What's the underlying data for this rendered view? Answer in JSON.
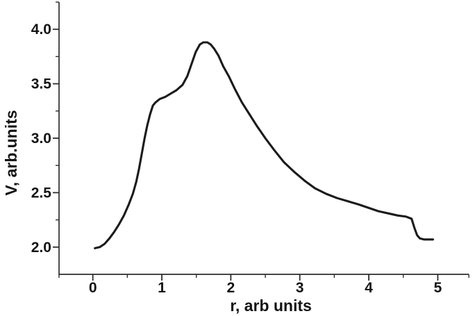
{
  "figure": {
    "background_color": "#ffffff",
    "axis_color": "#2d2d2d",
    "curve_color": "#1b1b1b",
    "text_color": "#141414"
  },
  "chart_data": {
    "type": "line",
    "title": "",
    "xlabel": "r, arb units",
    "ylabel": "V, arb.units",
    "xlim": [
      -0.49,
      5.45
    ],
    "ylim": [
      1.75,
      4.25
    ],
    "grid": false,
    "legend": null,
    "x_ticks": [
      0,
      1,
      2,
      3,
      4,
      5
    ],
    "x_tick_labels": [
      "0",
      "1",
      "2",
      "3",
      "4",
      "5"
    ],
    "x_minor_ticks": [
      -0.49,
      0.5,
      1.5,
      2.5,
      3.5,
      4.5,
      5.45
    ],
    "y_ticks": [
      2.0,
      2.5,
      3.0,
      3.5,
      4.0
    ],
    "y_tick_labels": [
      "2.0",
      "2.5",
      "3.0",
      "3.5",
      "4.0"
    ],
    "y_minor_ticks": [
      2.25,
      2.75,
      3.25,
      3.75,
      4.25
    ],
    "series": [
      {
        "name": "",
        "x": [
          0.03,
          0.1,
          0.17,
          0.24,
          0.31,
          0.38,
          0.45,
          0.52,
          0.58,
          0.63,
          0.67,
          0.71,
          0.75,
          0.79,
          0.83,
          0.87,
          0.91,
          0.97,
          1.05,
          1.13,
          1.21,
          1.3,
          1.37,
          1.43,
          1.49,
          1.55,
          1.6,
          1.66,
          1.71,
          1.76,
          1.82,
          1.89,
          1.97,
          2.06,
          2.16,
          2.27,
          2.38,
          2.5,
          2.63,
          2.77,
          2.92,
          3.07,
          3.22,
          3.38,
          3.54,
          3.7,
          3.86,
          4.0,
          4.14,
          4.28,
          4.42,
          4.54,
          4.62,
          4.66,
          4.7,
          4.74,
          4.8,
          4.87,
          4.93
        ],
        "y": [
          1.99,
          2.0,
          2.03,
          2.08,
          2.14,
          2.21,
          2.29,
          2.39,
          2.49,
          2.6,
          2.72,
          2.86,
          3.0,
          3.12,
          3.22,
          3.3,
          3.33,
          3.36,
          3.38,
          3.41,
          3.44,
          3.49,
          3.57,
          3.68,
          3.79,
          3.86,
          3.88,
          3.88,
          3.86,
          3.82,
          3.76,
          3.66,
          3.57,
          3.45,
          3.33,
          3.22,
          3.11,
          3.0,
          2.89,
          2.78,
          2.69,
          2.61,
          2.54,
          2.49,
          2.45,
          2.42,
          2.39,
          2.36,
          2.33,
          2.31,
          2.29,
          2.28,
          2.26,
          2.18,
          2.11,
          2.08,
          2.07,
          2.07,
          2.07
        ]
      }
    ]
  }
}
